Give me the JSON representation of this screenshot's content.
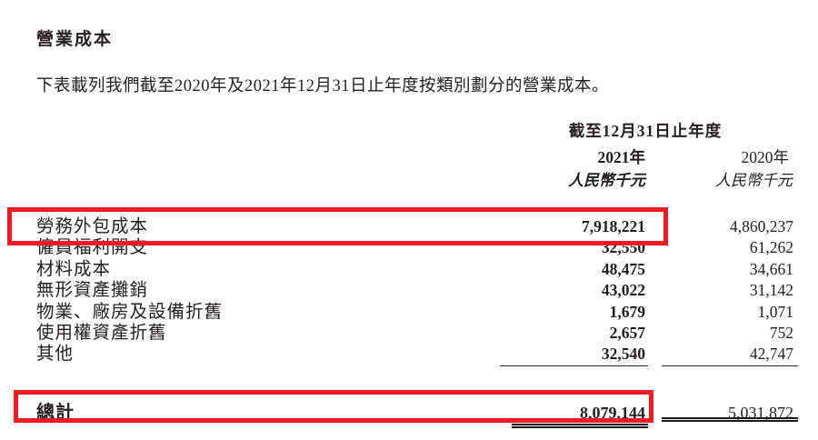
{
  "page": {
    "title": "營業成本",
    "intro": "下表載列我們截至2020年及2021年12月31日止年度按類別劃分的營業成本。"
  },
  "table": {
    "period_header": "截至12月31日止年度",
    "columns": [
      {
        "year": "2021年",
        "unit": "人民幣千元"
      },
      {
        "year": "2020年",
        "unit": "人民幣千元"
      }
    ],
    "rows": [
      {
        "label": "勞務外包成本",
        "v2021": "7,918,221",
        "v2020": "4,860,237"
      },
      {
        "label": "僱員福利開支",
        "v2021": "32,550",
        "v2020": "61,262"
      },
      {
        "label": "材料成本",
        "v2021": "48,475",
        "v2020": "34,661"
      },
      {
        "label": "無形資產攤銷",
        "v2021": "43,022",
        "v2020": "31,142"
      },
      {
        "label": "物業、廠房及設備折舊",
        "v2021": "1,679",
        "v2020": "1,071"
      },
      {
        "label": "使用權資產折舊",
        "v2021": "2,657",
        "v2020": "752"
      },
      {
        "label": "其他",
        "v2021": "32,540",
        "v2020": "42,747"
      }
    ],
    "total": {
      "label": "總計",
      "v2021": "8,079,144",
      "v2020": "5,031,872"
    }
  },
  "annotations": {
    "highlight_color": "#ed1c24",
    "highlighted_items": [
      "勞務外包成本 7,918,221",
      "總計 8,079,144"
    ]
  }
}
